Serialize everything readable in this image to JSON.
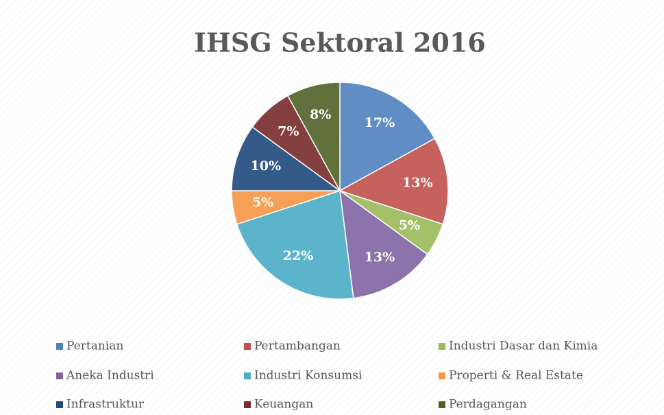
{
  "chart_data": {
    "type": "pie",
    "title": "IHSG Sektoral 2016",
    "categories": [
      "Pertanian",
      "Pertambangan",
      "Industri Dasar dan Kimia",
      "Aneka Industri",
      "Industri Konsumsi",
      "Properti & Real Estate",
      "Infrastruktur",
      "Keuangan",
      "Perdagangan"
    ],
    "values": [
      17,
      13,
      5,
      13,
      22,
      5,
      10,
      7,
      8
    ],
    "value_labels": [
      "17%",
      "13%",
      "5%",
      "13%",
      "22%",
      "5%",
      "10%",
      "7%",
      "8%"
    ],
    "colors": [
      "#4f81bd",
      "#c0504d",
      "#9bbb59",
      "#8064a2",
      "#4bacc6",
      "#f79646",
      "#1f497d",
      "#772c2a",
      "#4f6228"
    ],
    "legend": "bottom"
  }
}
